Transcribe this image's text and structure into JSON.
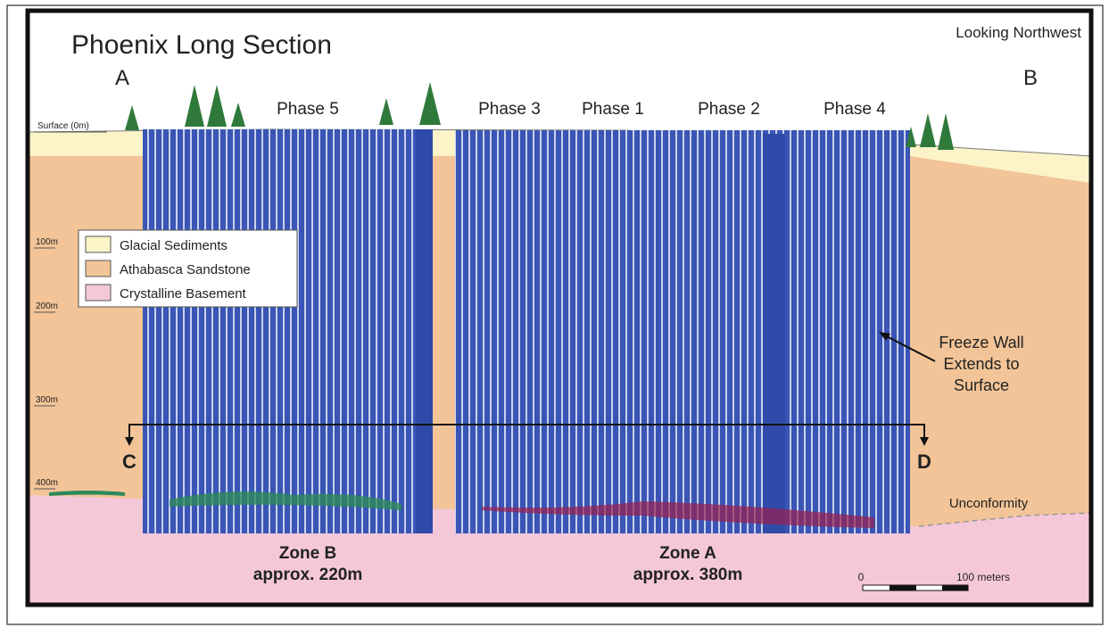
{
  "title": "Phoenix Long Section",
  "orientation": "Looking Northwest",
  "section_ends": {
    "start": "A",
    "end": "B"
  },
  "depth_labels": [
    "Surface (0m)",
    "100m",
    "200m",
    "300m",
    "400m"
  ],
  "phases": [
    "Phase 5",
    "Phase 3",
    "Phase 1",
    "Phase 2",
    "Phase 4"
  ],
  "legend": [
    "Glacial Sediments",
    "Athabasca Sandstone",
    "Crystalline Basement"
  ],
  "freeze_wall_note": [
    "Freeze Wall",
    "Extends to",
    "Surface"
  ],
  "cut_ends": {
    "start": "C",
    "end": "D"
  },
  "unconformity": "Unconformity",
  "zones": [
    {
      "name": "Zone B",
      "width": "approx. 220m"
    },
    {
      "name": "Zone A",
      "width": "approx. 380m"
    }
  ],
  "scale": {
    "start": "0",
    "end": "100 meters"
  }
}
